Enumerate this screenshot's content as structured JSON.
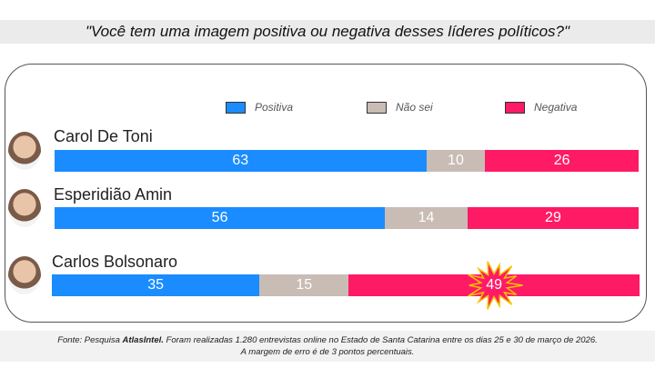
{
  "title": "\"Você tem uma imagem positiva ou negativa desses líderes políticos?\"",
  "chart_data": {
    "type": "bar",
    "orientation": "horizontal-stacked",
    "title": "\"Você tem uma imagem positiva ou negativa desses líderes políticos?\"",
    "categories": [
      "Carol De Toni",
      "Esperidião Amin",
      "Carlos Bolsonaro"
    ],
    "series": [
      {
        "name": "Positiva",
        "color": "#1a8cff",
        "values": [
          63,
          56,
          35
        ]
      },
      {
        "name": "Não sei",
        "color": "#c9bcb5",
        "values": [
          10,
          14,
          15
        ]
      },
      {
        "name": "Negativa",
        "color": "#ff1a66",
        "values": [
          26,
          29,
          49
        ]
      }
    ],
    "legend": "top",
    "highlight": {
      "category": "Carlos Bolsonaro",
      "series": "Negativa"
    }
  },
  "footer": {
    "line1_prefix": "Fonte: Pesquisa ",
    "source": "AtlasIntel.",
    "line1_rest": " Foram realizadas 1.280 entrevistas online no Estado de Santa Catarina entre os dias 25 e 30 de março de 2026.",
    "line2": "A margem de erro é de 3 pontos percentuais."
  }
}
